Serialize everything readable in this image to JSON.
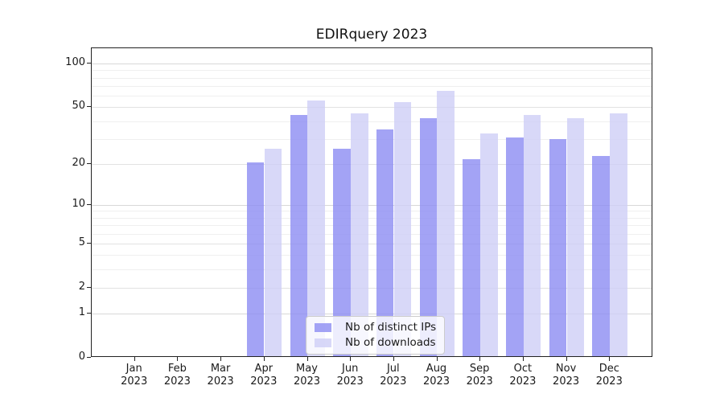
{
  "title": "EDIRquery 2023",
  "chart_data": {
    "type": "bar",
    "title": "EDIRquery 2023",
    "x_categories": [
      "Jan",
      "Feb",
      "Mar",
      "Apr",
      "May",
      "Jun",
      "Jul",
      "Aug",
      "Sep",
      "Oct",
      "Nov",
      "Dec"
    ],
    "x_year": "2023",
    "series": [
      {
        "name": "Nb of distinct IPs",
        "color": "rgba(140,140,242,0.8)",
        "values": [
          null,
          null,
          null,
          20,
          43,
          25,
          34,
          41,
          21,
          30,
          29,
          22
        ]
      },
      {
        "name": "Nb of downloads",
        "color": "rgba(206,206,246,0.8)",
        "values": [
          null,
          null,
          null,
          25,
          54,
          44,
          53,
          63,
          32,
          43,
          41,
          44
        ]
      }
    ],
    "y_axis": {
      "scale": "log10(value+1)",
      "ticks": [
        0,
        1,
        2,
        5,
        10,
        20,
        50,
        100
      ],
      "mid_gridlines": [
        2,
        5,
        20,
        50
      ],
      "minor_gridlines": [
        3,
        4,
        6,
        7,
        8,
        9,
        30,
        40,
        60,
        70,
        80,
        90
      ],
      "major_gridlines": [
        1,
        10,
        100
      ],
      "range": [
        0,
        100
      ]
    },
    "legend": {
      "position": "lower-center",
      "entries": [
        "Nb of distinct IPs",
        "Nb of downloads"
      ]
    },
    "grid": true
  }
}
